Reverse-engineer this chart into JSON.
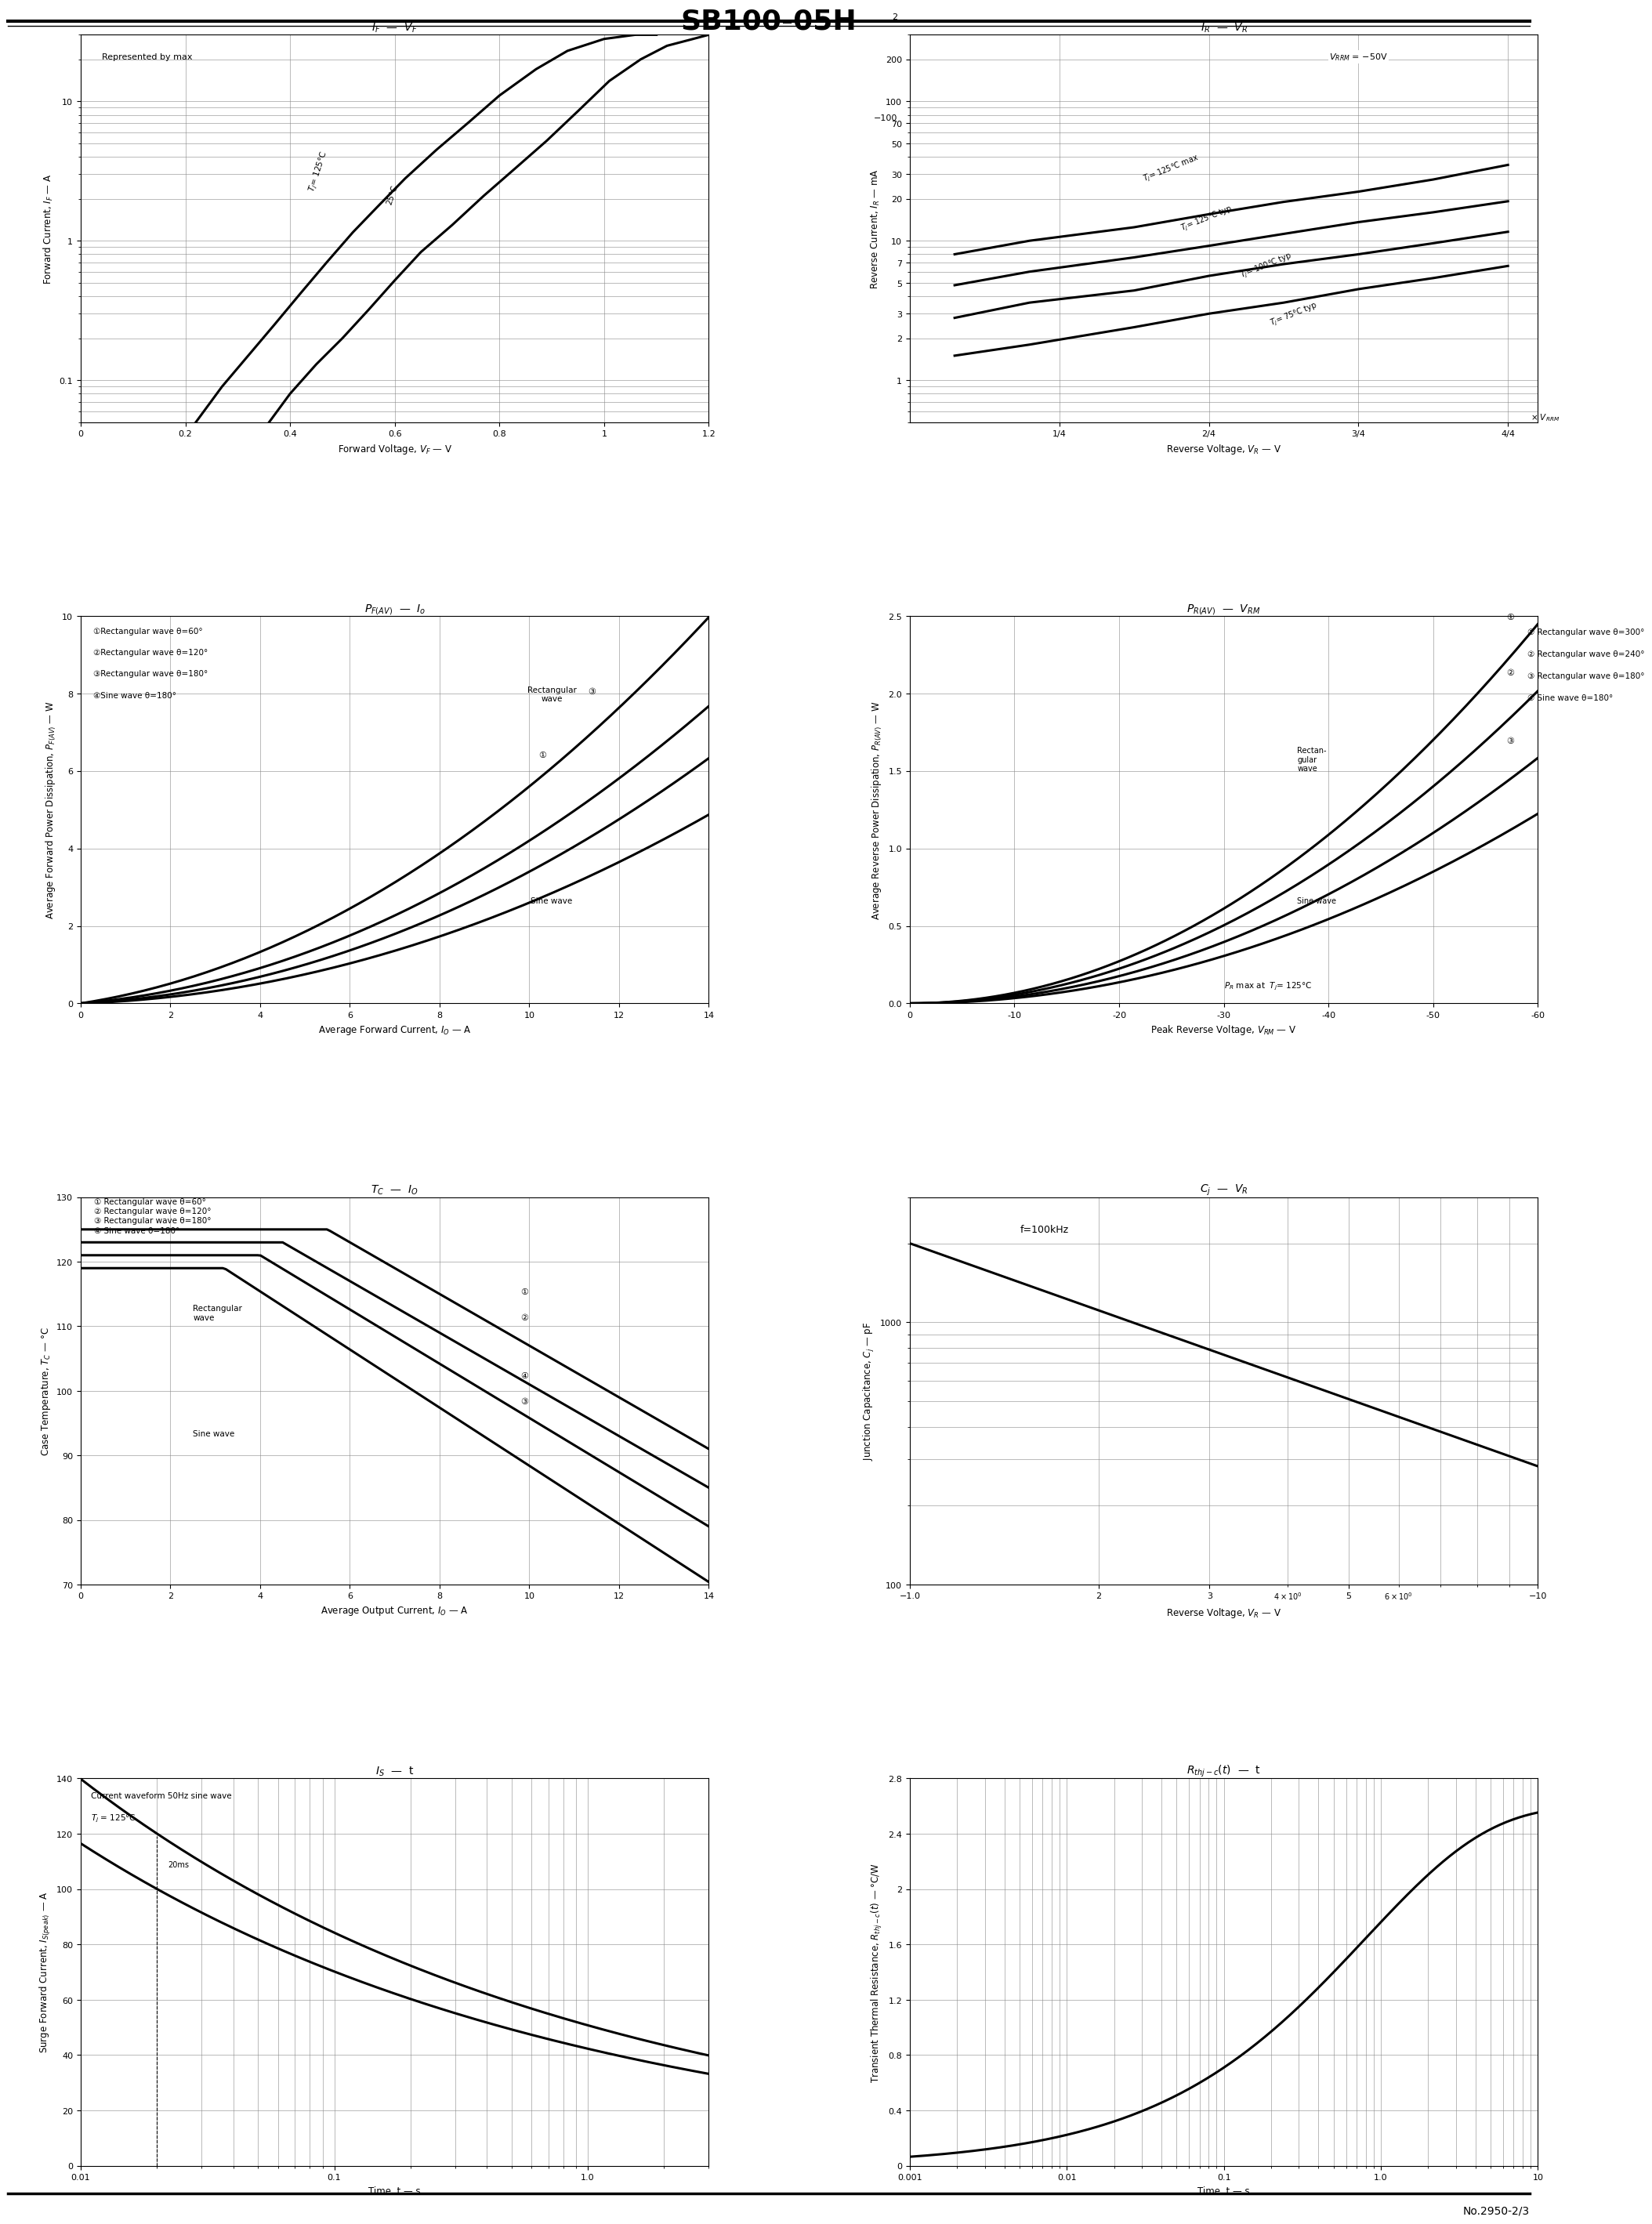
{
  "title": "SB100-05H",
  "footer": "No.2950-2/3",
  "plots": {
    "p1": {
      "title": "I_F  —  V_F",
      "xlabel": "Forward Voltage, V_F — V",
      "ylabel": "Forward Current, I_F — A",
      "xlim": [
        0,
        1.2
      ],
      "ylim_log": [
        0.05,
        30
      ],
      "xticks": [
        0,
        0.2,
        0.4,
        0.6,
        0.8,
        1.0,
        1.2
      ],
      "note": "Represented by max",
      "curve1_label": "T_j= 125°C",
      "curve2_label": "25°C"
    },
    "p2": {
      "title": "I_R  —  V_R",
      "xlabel": "Reverse Voltage, V_R — V",
      "ylabel": "Reverse Current, I_R — mA",
      "note": "V_RRM = −50V",
      "xtick_labels": [
        "1/4",
        "2/4",
        "3/4",
        "4/4"
      ],
      "xvrrm_label": "× V_RRM"
    },
    "p3": {
      "title": "P_F(AV)  —  I_o",
      "xlabel": "Average Forward Current, I_O — A",
      "ylabel": "Average Forward Power Dissipation, P_F(AV) — W",
      "xlim": [
        0,
        14
      ],
      "ylim": [
        0,
        10
      ],
      "legend": [
        "①Rectangular wave θ=60°",
        "②Rectangular wave θ=120°",
        "③Rectangular wave θ=180°",
        "④Sine wave θ=180°"
      ]
    },
    "p4": {
      "title": "P_R(AV)  —  V_RM",
      "xlabel": "Peak Reverse Voltage, V_RM — V",
      "ylabel": "Average Reverse Power Dissipation, P_R(AV) — W",
      "xlim": [
        -60,
        0
      ],
      "ylim": [
        0,
        2.5
      ],
      "legend": [
        "① Rectangular wave θ=300°",
        "② Rectangular wave θ=240°",
        "③ Rectangular wave θ=180°",
        "④ Sine wave θ=180°"
      ],
      "note": "P_R max at  T_j= 125°C"
    },
    "p5": {
      "title": "T_C  —  I_O",
      "xlabel": "Average Output Current, I_O — A",
      "ylabel": "Case Temperature, T_C — °C",
      "xlim": [
        0,
        14
      ],
      "ylim": [
        70,
        130
      ],
      "legend": [
        "① Rectangular wave θ=60°",
        "② Rectangular wave θ=120°",
        "③ Rectangular wave θ=180°",
        "④ Sine wave θ=180°"
      ]
    },
    "p6": {
      "title": "C_j  —  V_R",
      "xlabel": "Reverse Voltage, V_R — V",
      "ylabel": "Junction Capacitance, C_j — pF",
      "note": "f=100kHz",
      "xlim_log": [
        1.0,
        10
      ],
      "ylim_log": [
        100,
        3000
      ]
    },
    "p7": {
      "title": "I_S  —  t",
      "xlabel": "Time, t — s",
      "ylabel": "Surge Forward Current, I_S(peak) — A",
      "xlim_log": [
        0.01,
        3
      ],
      "ylim": [
        0,
        140
      ],
      "note1": "Current waveform 50Hz sine wave",
      "note2": "T_j= 125°C",
      "note3": "20ms"
    },
    "p8": {
      "title": "R_thj-c(t)  —  t",
      "xlabel": "Time, t — s",
      "ylabel": "Transient Thermal Resistance, R_thj-c(t) — °C/W",
      "xlim_log": [
        0.001,
        10
      ],
      "ylim": [
        0,
        2.8
      ]
    }
  }
}
